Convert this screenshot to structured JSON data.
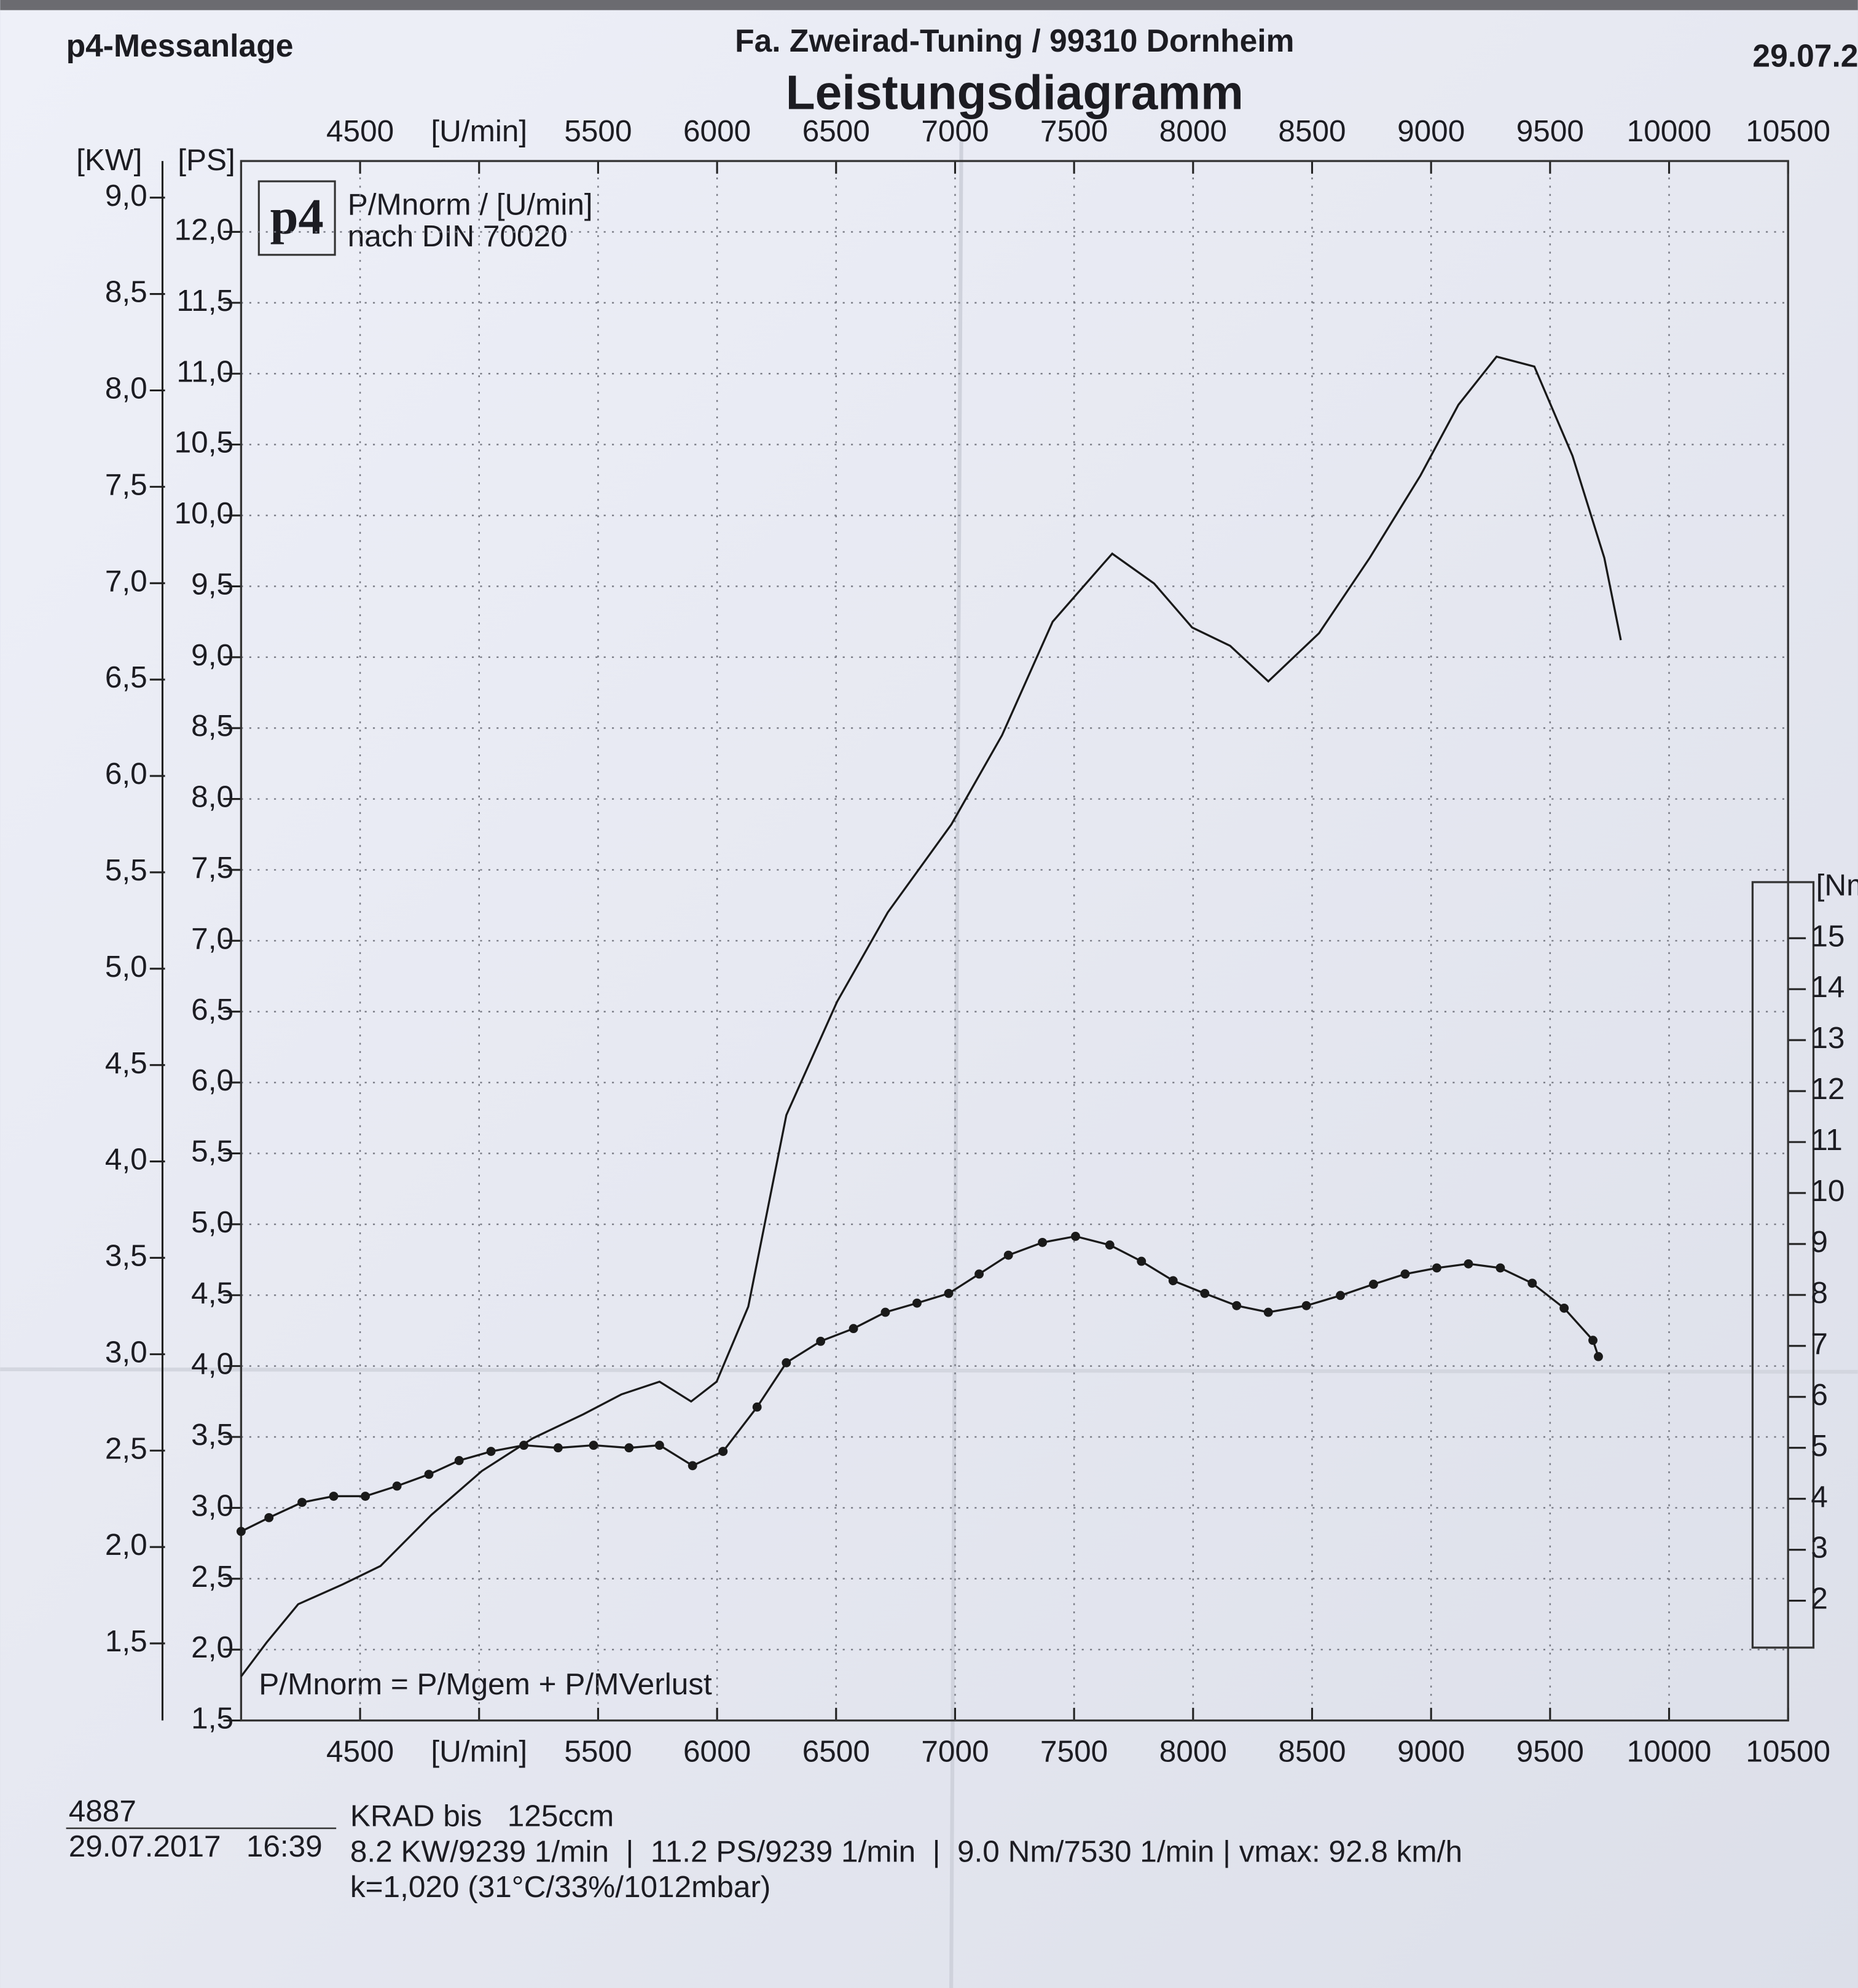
{
  "chart_data": {
    "type": "line",
    "header": {
      "left": "p4-Messanlage",
      "center": "Fa. Zweirad-Tuning / 99310 Dornheim",
      "right": "29.07.2"
    },
    "title": "Leistungsdiagramm",
    "logo": "p4",
    "legend": [
      "P/Mnorm / [U/min]",
      "nach DIN 70020"
    ],
    "formula": "P/Mnorm = P/Mgem + P/MVerlust",
    "xlim": [
      4000,
      10500
    ],
    "xticks": [
      4500,
      {
        "value": 5000,
        "label": "[U/min]"
      },
      5500,
      6000,
      6500,
      7000,
      7500,
      8000,
      8500,
      9000,
      9500,
      10000,
      10500
    ],
    "y_label": "[PS]",
    "ylim": [
      1.5,
      12.5
    ],
    "yticks": [
      {
        "value": 1.5,
        "label": "1,5"
      },
      {
        "value": 2.0,
        "label": "2,0"
      },
      {
        "value": 2.5,
        "label": "2,5"
      },
      {
        "value": 3.0,
        "label": "3,0"
      },
      {
        "value": 3.5,
        "label": "3,5"
      },
      {
        "value": 4.0,
        "label": "4,0"
      },
      {
        "value": 4.5,
        "label": "4,5"
      },
      {
        "value": 5.0,
        "label": "5,0"
      },
      {
        "value": 5.5,
        "label": "5,5"
      },
      {
        "value": 6.0,
        "label": "6,0"
      },
      {
        "value": 6.5,
        "label": "6,5"
      },
      {
        "value": 7.0,
        "label": "7,0"
      },
      {
        "value": 7.5,
        "label": "7,5"
      },
      {
        "value": 8.0,
        "label": "8,0"
      },
      {
        "value": 8.5,
        "label": "8,5"
      },
      {
        "value": 9.0,
        "label": "9,0"
      },
      {
        "value": 9.5,
        "label": "9,5"
      },
      {
        "value": 10.0,
        "label": "10,0"
      },
      {
        "value": 10.5,
        "label": "10,5"
      },
      {
        "value": 11.0,
        "label": "11,0"
      },
      {
        "value": 11.5,
        "label": "11,5"
      },
      {
        "value": 12.0,
        "label": "12,0"
      }
    ],
    "kw_label": "[KW]",
    "kwlim": [
      1.1,
      9.19
    ],
    "kwticks": [
      {
        "value": 1.5,
        "label": "1,5"
      },
      {
        "value": 2.0,
        "label": "2,0"
      },
      {
        "value": 2.5,
        "label": "2,5"
      },
      {
        "value": 3.0,
        "label": "3,0"
      },
      {
        "value": 3.5,
        "label": "3,5"
      },
      {
        "value": 4.0,
        "label": "4,0"
      },
      {
        "value": 4.5,
        "label": "4,5"
      },
      {
        "value": 5.0,
        "label": "5,0"
      },
      {
        "value": 5.5,
        "label": "5,5"
      },
      {
        "value": 6.0,
        "label": "6,0"
      },
      {
        "value": 6.5,
        "label": "6,5"
      },
      {
        "value": 7.0,
        "label": "7,0"
      },
      {
        "value": 7.5,
        "label": "7,5"
      },
      {
        "value": 8.0,
        "label": "8,0"
      },
      {
        "value": 8.5,
        "label": "8,5"
      },
      {
        "value": 9.0,
        "label": "9,0"
      }
    ],
    "y2_label": "[Nm",
    "y2lim": [
      -0.35,
      30.25
    ],
    "y2ticks": [
      2,
      3,
      4,
      5,
      6,
      7,
      8,
      9,
      10,
      11,
      12,
      13,
      14,
      15
    ],
    "grid": true,
    "series": [
      {
        "color": "#1a1a1a",
        "markers": false,
        "x": [
          4000,
          4107,
          4240,
          4426,
          4586,
          4799,
          5012,
          5225,
          5438,
          5598,
          5758,
          5891,
          5998,
          6131,
          6291,
          6504,
          6717,
          6984,
          7197,
          7410,
          7623,
          7660,
          7836,
          7996,
          8156,
          8316,
          8529,
          8742,
          8955,
          9115,
          9275,
          9434,
          9594,
          9728,
          9797
        ],
        "values": [
          1.81,
          2.05,
          2.32,
          2.46,
          2.59,
          2.95,
          3.26,
          3.49,
          3.66,
          3.8,
          3.89,
          3.75,
          3.89,
          4.42,
          5.77,
          6.57,
          7.2,
          7.82,
          8.45,
          9.25,
          9.66,
          9.73,
          9.52,
          9.21,
          9.08,
          8.83,
          9.17,
          9.7,
          10.28,
          10.78,
          11.12,
          11.05,
          10.42,
          9.7,
          9.12
        ]
      },
      {
        "color": "#1a1a1a",
        "markers": true,
        "axis": "y2",
        "x": [
          4000,
          4117,
          4256,
          4389,
          4522,
          4655,
          4789,
          4916,
          5050,
          5188,
          5332,
          5481,
          5630,
          5758,
          5897,
          6025,
          6168,
          6291,
          6435,
          6573,
          6707,
          6840,
          6973,
          7101,
          7224,
          7367,
          7506,
          7650,
          7783,
          7916,
          8049,
          8183,
          8316,
          8476,
          8619,
          8758,
          8891,
          9024,
          9157,
          9291,
          9425,
          9559,
          9680,
          9703
        ],
        "values": [
          3.36,
          3.63,
          3.93,
          4.05,
          4.05,
          4.25,
          4.48,
          4.75,
          4.93,
          5.05,
          5.0,
          5.05,
          5.0,
          5.05,
          4.65,
          4.93,
          5.8,
          6.67,
          7.09,
          7.34,
          7.66,
          7.84,
          8.03,
          8.41,
          8.78,
          9.03,
          9.15,
          8.98,
          8.66,
          8.28,
          8.03,
          7.79,
          7.66,
          7.79,
          7.99,
          8.21,
          8.41,
          8.53,
          8.61,
          8.53,
          8.23,
          7.74,
          7.11,
          6.79
        ]
      }
    ]
  },
  "footer": {
    "id": "4887",
    "datetime": "29.07.2017   16:39",
    "class": "KRAD bis   125ccm",
    "results": "8.2 KW/9239 1/min  |  11.2 PS/9239 1/min  |  9.0 Nm/7530 1/min | vmax: 92.8 km/h",
    "conditions": "k=1,020 (31°C/33%/1012mbar)"
  }
}
